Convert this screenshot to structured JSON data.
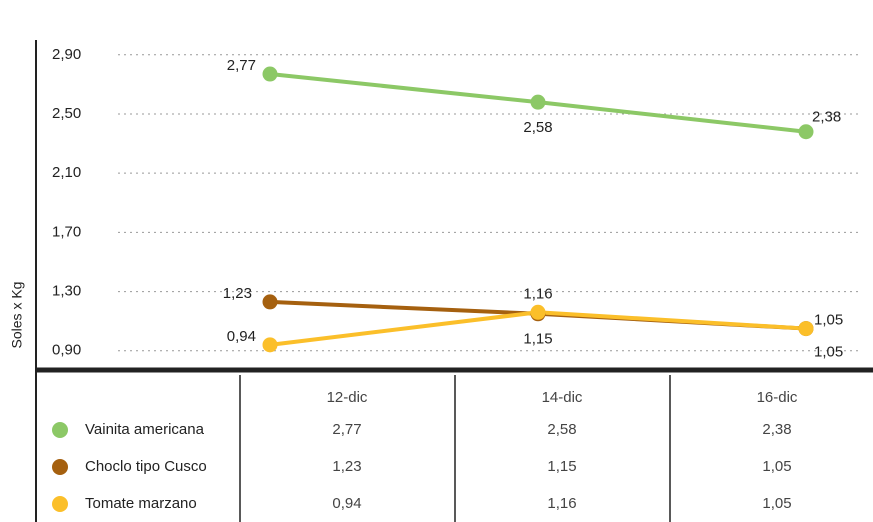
{
  "chart_data": {
    "type": "line",
    "y_label": "Soles x Kg",
    "categories": [
      "12-dic",
      "14-dic",
      "16-dic"
    ],
    "series": [
      {
        "name": "Vainita americana",
        "color": "#8cc866",
        "values": [
          2.77,
          2.58,
          2.38
        ],
        "value_labels": [
          "2,77",
          "2,58",
          "2,38"
        ]
      },
      {
        "name": "Choclo tipo Cusco",
        "color": "#a5600f",
        "values": [
          1.23,
          1.15,
          1.05
        ],
        "value_labels": [
          "1,23",
          "1,15",
          "1,05"
        ]
      },
      {
        "name": "Tomate marzano",
        "color": "#fbbf2a",
        "values": [
          0.94,
          1.16,
          1.05
        ],
        "value_labels": [
          "0,94",
          "1,16",
          "1,05"
        ]
      }
    ],
    "ylim": [
      0.77,
      3.0
    ],
    "yticks": [
      {
        "value": 0.9,
        "label": "0,90"
      },
      {
        "value": 1.3,
        "label": "1,30"
      },
      {
        "value": 1.7,
        "label": "1,70"
      },
      {
        "value": 2.1,
        "label": "2,10"
      },
      {
        "value": 2.5,
        "label": "2,50"
      },
      {
        "value": 2.9,
        "label": "2,90"
      }
    ],
    "grid": true
  }
}
